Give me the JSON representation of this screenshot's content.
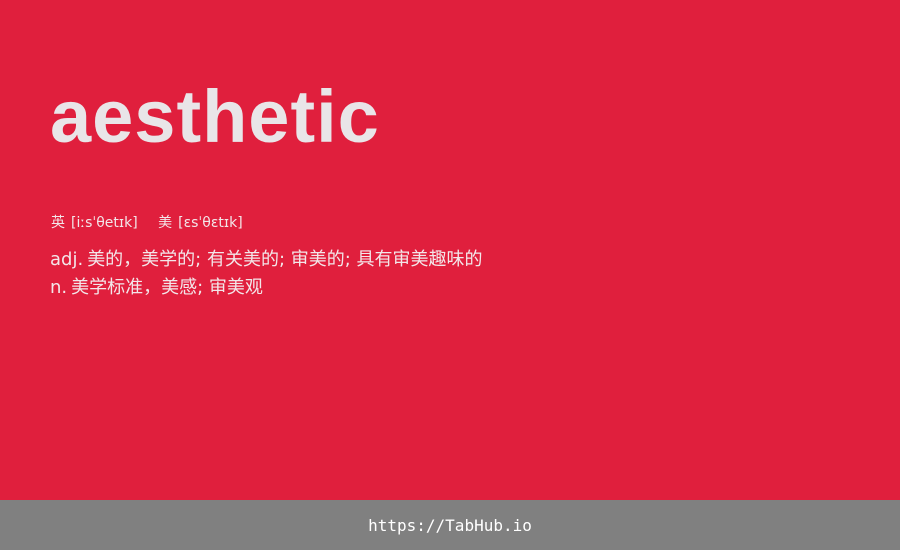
{
  "colors": {
    "background": "#E01F3D",
    "footer_background": "#808080",
    "word_text": "#E9E5E8",
    "body_text": "#F3E6E9"
  },
  "entry": {
    "word": "aesthetic",
    "phonetics": {
      "uk": {
        "label": "英",
        "ipa": "[iːsˈθetɪk]"
      },
      "us": {
        "label": "美",
        "ipa": "[ɛsˈθɛtɪk]"
      }
    },
    "definitions": [
      {
        "pos": "adj.",
        "meaning": "美的，美学的; 有关美的; 审美的; 具有审美趣味的"
      },
      {
        "pos": "n.",
        "meaning": "美学标准，美感; 审美观"
      }
    ]
  },
  "footer": {
    "link_text": "https://TabHub.io"
  }
}
